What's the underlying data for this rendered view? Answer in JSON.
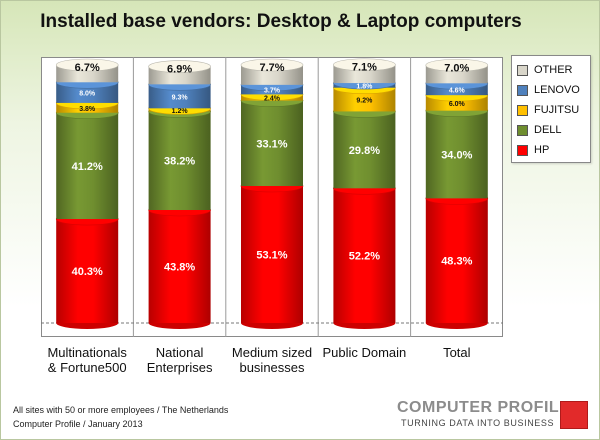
{
  "chart_data": {
    "type": "bar",
    "stacked": true,
    "title": "Installed base vendors: Desktop & Laptop computers",
    "categories": [
      "Multinationals\n& Fortune500",
      "National\nEnterprises",
      "Medium sized\nbusinesses",
      "Public Domain",
      "Total"
    ],
    "ylim": [
      0,
      100
    ],
    "series": [
      {
        "name": "HP",
        "color": "#ff0000",
        "values": [
          40.3,
          43.8,
          53.1,
          52.2,
          48.3
        ],
        "labels": [
          "40.3%",
          "43.8%",
          "53.1%",
          "52.2%",
          "48.3%"
        ]
      },
      {
        "name": "DELL",
        "color": "#6f8e2f",
        "values": [
          41.2,
          38.2,
          33.1,
          29.8,
          34.0
        ],
        "labels": [
          "41.2%",
          "38.2%",
          "33.1%",
          "29.8%",
          "34.0%"
        ]
      },
      {
        "name": "FUJITSU",
        "color": "#ffc000",
        "values": [
          3.8,
          1.2,
          2.4,
          9.2,
          6.0
        ],
        "labels": [
          "3.8%",
          "1.2%",
          "2.4%",
          "9.2%",
          "6.0%"
        ]
      },
      {
        "name": "LENOVO",
        "color": "#4f81bd",
        "values": [
          8.0,
          9.3,
          3.7,
          1.8,
          4.6
        ],
        "labels": [
          "8.0%",
          "9.3%",
          "3.7%",
          "1.8%",
          "4.6%"
        ]
      },
      {
        "name": "OTHER",
        "color": "#d9d6ca",
        "values": [
          6.7,
          6.9,
          7.7,
          7.1,
          7.0
        ],
        "labels": [
          "6.7%",
          "6.9%",
          "7.7%",
          "7.1%",
          "7.0%"
        ]
      }
    ],
    "legend_order": [
      "OTHER",
      "LENOVO",
      "FUJITSU",
      "DELL",
      "HP"
    ],
    "legend_position": "right",
    "grid": false
  },
  "footnote": {
    "line1": "All sites with 50 or more employees / The Netherlands",
    "line2": "Computer Profile / January 2013"
  },
  "logo": {
    "name": "COMPUTER PROFILE",
    "tagline": "TURNING DATA INTO BUSINESS"
  }
}
